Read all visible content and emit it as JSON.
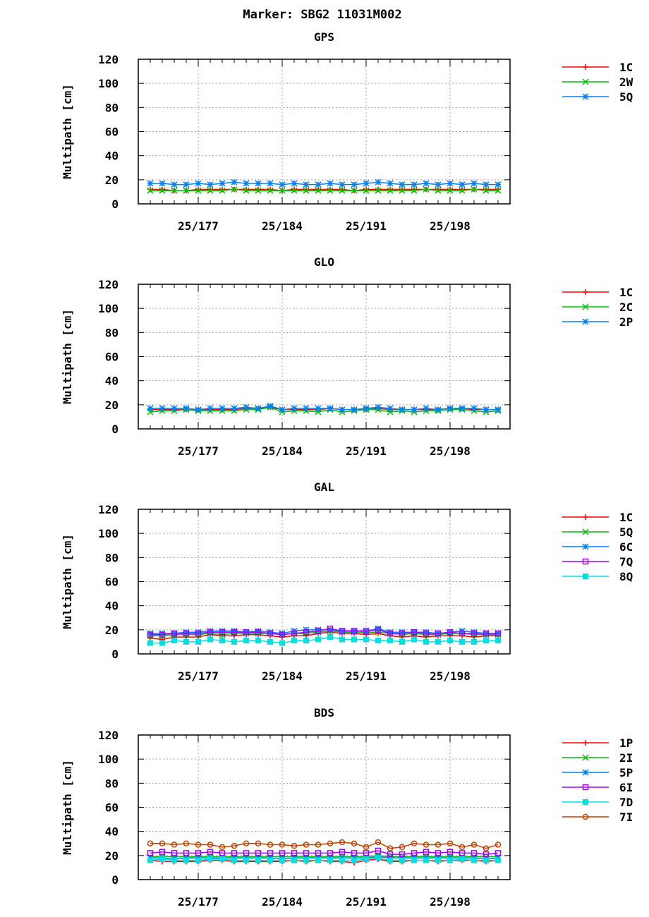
{
  "figure_title": "Marker: SBG2 11031M002",
  "chart_data": [
    {
      "type": "line",
      "title": "GPS",
      "xlabel": "",
      "ylabel": "Multipath [cm]",
      "ylim": [
        0,
        120
      ],
      "yticks": [
        0,
        20,
        40,
        60,
        80,
        100,
        120
      ],
      "xlim": [
        172,
        203
      ],
      "xticks": [
        177,
        184,
        191,
        198
      ],
      "xtick_labels": [
        "25/177",
        "25/184",
        "25/191",
        "25/198"
      ],
      "grid": true,
      "legend_position": "top-right outside",
      "x": [
        173,
        174,
        175,
        176,
        177,
        178,
        179,
        180,
        181,
        182,
        183,
        184,
        185,
        186,
        187,
        188,
        189,
        190,
        191,
        192,
        193,
        194,
        195,
        196,
        197,
        198,
        199,
        200,
        201,
        202
      ],
      "series": [
        {
          "name": "1C",
          "color": "#ff0000",
          "marker": "plus",
          "values": [
            12,
            12,
            11,
            11,
            12,
            12,
            12,
            12,
            12,
            12,
            12,
            11,
            12,
            12,
            12,
            12,
            12,
            11,
            12,
            12,
            12,
            12,
            12,
            12,
            12,
            12,
            12,
            12,
            12,
            12
          ]
        },
        {
          "name": "2W",
          "color": "#00c000",
          "marker": "x",
          "values": [
            11,
            11,
            11,
            11,
            11,
            11,
            11,
            12,
            11,
            11,
            11,
            11,
            11,
            11,
            11,
            11,
            11,
            11,
            11,
            11,
            11,
            11,
            11,
            12,
            11,
            11,
            11,
            12,
            11,
            11
          ]
        },
        {
          "name": "5Q",
          "color": "#0080ff",
          "marker": "star",
          "values": [
            17,
            17,
            16,
            16,
            17,
            16,
            17,
            18,
            17,
            17,
            17,
            16,
            17,
            16,
            16,
            17,
            16,
            16,
            17,
            18,
            17,
            16,
            16,
            17,
            16,
            17,
            16,
            17,
            16,
            16
          ]
        }
      ]
    },
    {
      "type": "line",
      "title": "GLO",
      "xlabel": "",
      "ylabel": "Multipath [cm]",
      "ylim": [
        0,
        120
      ],
      "yticks": [
        0,
        20,
        40,
        60,
        80,
        100,
        120
      ],
      "xlim": [
        172,
        203
      ],
      "xticks": [
        177,
        184,
        191,
        198
      ],
      "xtick_labels": [
        "25/177",
        "25/184",
        "25/191",
        "25/198"
      ],
      "grid": true,
      "legend_position": "top-right outside",
      "x": [
        173,
        174,
        175,
        176,
        177,
        178,
        179,
        180,
        181,
        182,
        183,
        184,
        185,
        186,
        187,
        188,
        189,
        190,
        191,
        192,
        193,
        194,
        195,
        196,
        197,
        198,
        199,
        200,
        201,
        202
      ],
      "series": [
        {
          "name": "1C",
          "color": "#ff0000",
          "marker": "plus",
          "values": [
            16,
            16,
            16,
            16,
            16,
            16,
            16,
            16,
            17,
            17,
            18,
            16,
            16,
            16,
            16,
            17,
            16,
            16,
            16,
            17,
            16,
            16,
            16,
            16,
            16,
            17,
            17,
            16,
            16,
            16
          ]
        },
        {
          "name": "2C",
          "color": "#00c000",
          "marker": "x",
          "values": [
            14,
            15,
            15,
            16,
            15,
            15,
            15,
            15,
            16,
            16,
            18,
            14,
            15,
            15,
            14,
            16,
            14,
            15,
            16,
            16,
            14,
            15,
            14,
            15,
            15,
            16,
            16,
            15,
            14,
            15
          ]
        },
        {
          "name": "2P",
          "color": "#0080ff",
          "marker": "star",
          "values": [
            17,
            17,
            17,
            17,
            16,
            17,
            17,
            17,
            18,
            17,
            19,
            16,
            17,
            17,
            17,
            17,
            16,
            16,
            17,
            18,
            17,
            16,
            16,
            17,
            16,
            17,
            17,
            17,
            16,
            16
          ]
        }
      ]
    },
    {
      "type": "line",
      "title": "GAL",
      "xlabel": "",
      "ylabel": "Multipath [cm]",
      "ylim": [
        0,
        120
      ],
      "yticks": [
        0,
        20,
        40,
        60,
        80,
        100,
        120
      ],
      "xlim": [
        172,
        203
      ],
      "xticks": [
        177,
        184,
        191,
        198
      ],
      "xtick_labels": [
        "25/177",
        "25/184",
        "25/191",
        "25/198"
      ],
      "grid": true,
      "legend_position": "top-right outside",
      "x": [
        173,
        174,
        175,
        176,
        177,
        178,
        179,
        180,
        181,
        182,
        183,
        184,
        185,
        186,
        187,
        188,
        189,
        190,
        191,
        192,
        193,
        194,
        195,
        196,
        197,
        198,
        199,
        200,
        201,
        202
      ],
      "series": [
        {
          "name": "1C",
          "color": "#ff0000",
          "marker": "plus",
          "values": [
            13,
            12,
            14,
            14,
            14,
            16,
            15,
            15,
            16,
            16,
            15,
            14,
            15,
            15,
            17,
            18,
            17,
            17,
            16,
            17,
            15,
            14,
            15,
            14,
            15,
            15,
            15,
            14,
            15,
            15
          ]
        },
        {
          "name": "5Q",
          "color": "#00c000",
          "marker": "x",
          "values": [
            15,
            15,
            16,
            16,
            16,
            17,
            16,
            17,
            17,
            17,
            17,
            16,
            17,
            17,
            18,
            19,
            18,
            18,
            18,
            18,
            17,
            16,
            17,
            16,
            16,
            17,
            17,
            16,
            16,
            16
          ]
        },
        {
          "name": "6C",
          "color": "#0080ff",
          "marker": "star",
          "values": [
            17,
            17,
            17,
            18,
            18,
            19,
            19,
            19,
            18,
            19,
            18,
            17,
            19,
            20,
            20,
            20,
            19,
            19,
            19,
            21,
            18,
            18,
            18,
            18,
            17,
            18,
            19,
            18,
            17,
            17
          ]
        },
        {
          "name": "7Q",
          "color": "#a000ff",
          "marker": "open-square",
          "values": [
            16,
            16,
            17,
            17,
            17,
            18,
            18,
            18,
            18,
            18,
            17,
            16,
            17,
            18,
            19,
            21,
            19,
            19,
            19,
            20,
            17,
            17,
            18,
            17,
            17,
            18,
            17,
            17,
            17,
            17
          ]
        },
        {
          "name": "8Q",
          "color": "#00e0e0",
          "marker": "filled-square",
          "values": [
            9,
            9,
            11,
            10,
            10,
            12,
            11,
            10,
            11,
            11,
            10,
            9,
            11,
            11,
            12,
            14,
            12,
            12,
            12,
            11,
            11,
            10,
            12,
            10,
            10,
            11,
            10,
            10,
            11,
            11
          ]
        }
      ]
    },
    {
      "type": "line",
      "title": "BDS",
      "xlabel": "",
      "ylabel": "Multipath [cm]",
      "ylim": [
        0,
        120
      ],
      "yticks": [
        0,
        20,
        40,
        60,
        80,
        100,
        120
      ],
      "xlim": [
        172,
        203
      ],
      "xticks": [
        177,
        184,
        191,
        198
      ],
      "xtick_labels": [
        "25/177",
        "25/184",
        "25/191",
        "25/198"
      ],
      "grid": true,
      "legend_position": "top-right outside",
      "x": [
        173,
        174,
        175,
        176,
        177,
        178,
        179,
        180,
        181,
        182,
        183,
        184,
        185,
        186,
        187,
        188,
        189,
        190,
        191,
        192,
        193,
        194,
        195,
        196,
        197,
        198,
        199,
        200,
        201,
        202
      ],
      "series": [
        {
          "name": "1P",
          "color": "#ff0000",
          "marker": "plus",
          "values": [
            16,
            15,
            15,
            15,
            15,
            16,
            16,
            15,
            15,
            15,
            15,
            15,
            16,
            15,
            16,
            15,
            15,
            14,
            16,
            17,
            15,
            15,
            16,
            16,
            15,
            16,
            16,
            16,
            15,
            16
          ]
        },
        {
          "name": "2I",
          "color": "#00c000",
          "marker": "x",
          "values": [
            19,
            19,
            19,
            19,
            19,
            19,
            19,
            19,
            19,
            19,
            19,
            19,
            19,
            19,
            19,
            19,
            19,
            19,
            19,
            20,
            19,
            19,
            19,
            19,
            19,
            19,
            19,
            19,
            19,
            19
          ]
        },
        {
          "name": "5P",
          "color": "#0080ff",
          "marker": "star",
          "values": [
            18,
            18,
            17,
            18,
            18,
            18,
            18,
            18,
            18,
            18,
            18,
            17,
            18,
            18,
            18,
            18,
            18,
            18,
            18,
            19,
            18,
            18,
            18,
            18,
            18,
            18,
            18,
            18,
            17,
            18
          ]
        },
        {
          "name": "6I",
          "color": "#a000ff",
          "marker": "open-square",
          "values": [
            22,
            23,
            22,
            22,
            22,
            23,
            22,
            22,
            22,
            22,
            22,
            22,
            22,
            22,
            22,
            22,
            23,
            22,
            22,
            24,
            21,
            21,
            22,
            23,
            22,
            23,
            22,
            22,
            21,
            22
          ]
        },
        {
          "name": "7D",
          "color": "#00e0e0",
          "marker": "filled-square",
          "values": [
            16,
            17,
            16,
            16,
            16,
            17,
            17,
            16,
            16,
            16,
            16,
            16,
            16,
            16,
            16,
            16,
            16,
            16,
            17,
            18,
            16,
            16,
            16,
            16,
            16,
            16,
            17,
            16,
            16,
            16
          ]
        },
        {
          "name": "7I",
          "color": "#c04000",
          "marker": "open-circle",
          "values": [
            30,
            30,
            29,
            30,
            29,
            29,
            27,
            28,
            30,
            30,
            29,
            29,
            28,
            29,
            29,
            30,
            31,
            30,
            27,
            31,
            26,
            27,
            30,
            29,
            29,
            30,
            27,
            29,
            26,
            29
          ]
        }
      ]
    }
  ]
}
